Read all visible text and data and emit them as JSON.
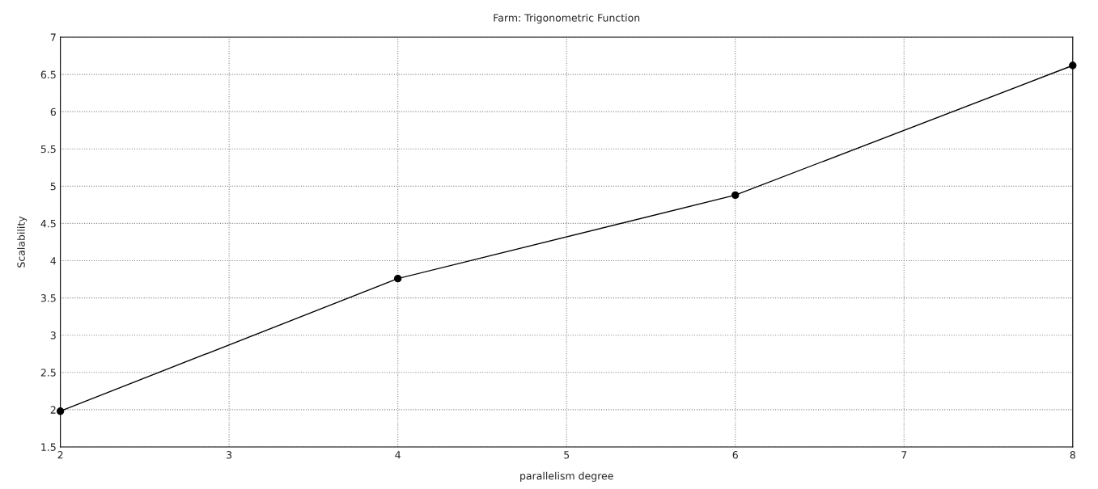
{
  "chart_data": {
    "type": "line",
    "title": "Farm: Trigonometric Function",
    "xlabel": "parallelism degree",
    "ylabel": "Scalability",
    "x": [
      2,
      4,
      6,
      8
    ],
    "series": [
      {
        "color": "#000000",
        "values": [
          1.98,
          3.76,
          4.88,
          6.62
        ]
      }
    ],
    "xlim": [
      2,
      8
    ],
    "xticks": [
      2,
      3,
      4,
      5,
      6,
      7,
      8
    ],
    "ylim": [
      1.5,
      7
    ],
    "yticks": [
      1.5,
      2,
      2.5,
      3,
      3.5,
      4,
      4.5,
      5,
      5.5,
      6,
      6.5,
      7
    ],
    "grid": true,
    "marker": "circle",
    "line_style": "solid"
  }
}
